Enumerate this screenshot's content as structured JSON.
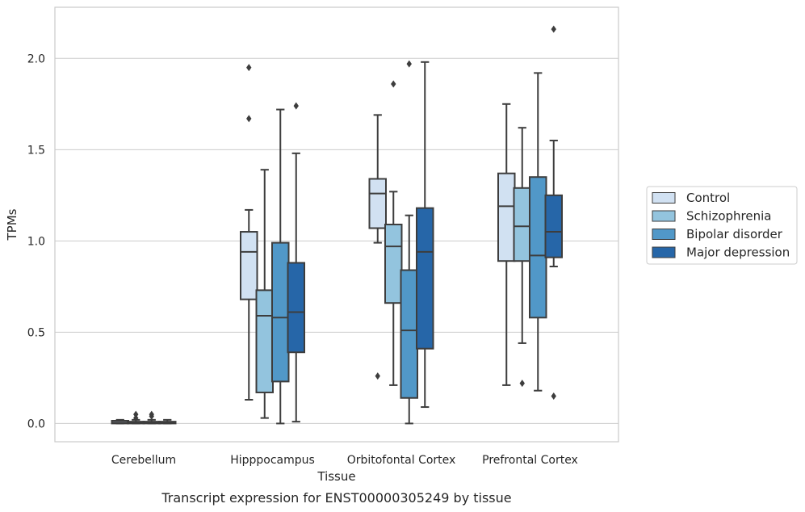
{
  "chart_data": {
    "type": "box",
    "xlabel": "Tissue",
    "ylabel": "TPMs",
    "caption": "Transcript expression for ENST00000305249 by tissue",
    "ylim": [
      -0.1,
      2.28
    ],
    "yticks": [
      0.0,
      0.5,
      1.0,
      1.5,
      2.0
    ],
    "ytick_labels": [
      "0.0",
      "0.5",
      "1.0",
      "1.5",
      "2.0"
    ],
    "categories": [
      "Cerebellum",
      "Hipppocampus",
      "Orbitofontal Cortex",
      "Prefrontal Cortex"
    ],
    "grid": "horizontal",
    "legend_position": "right",
    "series": [
      {
        "name": "Control",
        "color": "#d1e1f2",
        "boxes": [
          {
            "whisker_low": 0.0,
            "q1": 0.0,
            "median": 0.005,
            "q3": 0.015,
            "whisker_high": 0.02,
            "outliers": []
          },
          {
            "whisker_low": 0.13,
            "q1": 0.68,
            "median": 0.94,
            "q3": 1.05,
            "whisker_high": 1.17,
            "outliers": [
              1.67,
              1.95
            ]
          },
          {
            "whisker_low": 0.99,
            "q1": 1.07,
            "median": 1.26,
            "q3": 1.34,
            "whisker_high": 1.69,
            "outliers": [
              0.26
            ]
          },
          {
            "whisker_low": 0.21,
            "q1": 0.89,
            "median": 1.19,
            "q3": 1.37,
            "whisker_high": 1.75,
            "outliers": []
          }
        ]
      },
      {
        "name": "Schizophrenia",
        "color": "#93c4de",
        "boxes": [
          {
            "whisker_low": 0.0,
            "q1": 0.0,
            "median": 0.005,
            "q3": 0.01,
            "whisker_high": 0.02,
            "outliers": [
              0.03,
              0.05
            ]
          },
          {
            "whisker_low": 0.03,
            "q1": 0.17,
            "median": 0.59,
            "q3": 0.73,
            "whisker_high": 1.39,
            "outliers": []
          },
          {
            "whisker_low": 0.21,
            "q1": 0.66,
            "median": 0.97,
            "q3": 1.09,
            "whisker_high": 1.27,
            "outliers": [
              1.86
            ]
          },
          {
            "whisker_low": 0.44,
            "q1": 0.89,
            "median": 1.08,
            "q3": 1.29,
            "whisker_high": 1.62,
            "outliers": [
              0.22
            ]
          }
        ]
      },
      {
        "name": "Bipolar disorder",
        "color": "#5198c8",
        "boxes": [
          {
            "whisker_low": 0.0,
            "q1": 0.0,
            "median": 0.005,
            "q3": 0.01,
            "whisker_high": 0.02,
            "outliers": [
              0.04,
              0.05
            ]
          },
          {
            "whisker_low": 0.0,
            "q1": 0.23,
            "median": 0.58,
            "q3": 0.99,
            "whisker_high": 1.72,
            "outliers": []
          },
          {
            "whisker_low": 0.0,
            "q1": 0.14,
            "median": 0.51,
            "q3": 0.84,
            "whisker_high": 1.14,
            "outliers": [
              1.97
            ]
          },
          {
            "whisker_low": 0.18,
            "q1": 0.58,
            "median": 0.92,
            "q3": 1.35,
            "whisker_high": 1.92,
            "outliers": []
          }
        ]
      },
      {
        "name": "Major depression",
        "color": "#2666a8",
        "boxes": [
          {
            "whisker_low": 0.0,
            "q1": 0.0,
            "median": 0.005,
            "q3": 0.01,
            "whisker_high": 0.02,
            "outliers": []
          },
          {
            "whisker_low": 0.01,
            "q1": 0.39,
            "median": 0.61,
            "q3": 0.88,
            "whisker_high": 1.48,
            "outliers": [
              1.74
            ]
          },
          {
            "whisker_low": 0.09,
            "q1": 0.41,
            "median": 0.94,
            "q3": 1.18,
            "whisker_high": 1.98,
            "outliers": []
          },
          {
            "whisker_low": 0.86,
            "q1": 0.91,
            "median": 1.05,
            "q3": 1.25,
            "whisker_high": 1.55,
            "outliers": [
              0.15,
              2.16
            ]
          }
        ]
      }
    ]
  }
}
